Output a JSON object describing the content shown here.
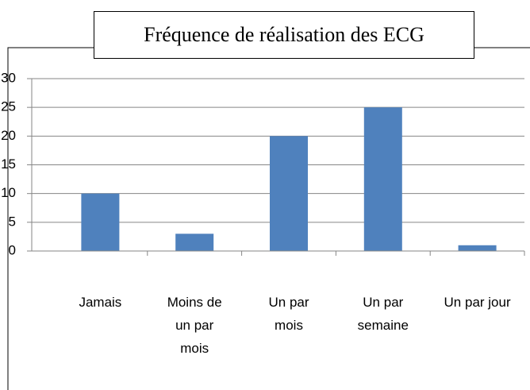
{
  "chart_data": {
    "type": "bar",
    "title": "Fréquence de réalisation des ECG",
    "categories": [
      "Jamais",
      "Moins de un par mois",
      "Un par mois",
      "Un par semaine",
      "Un par jour"
    ],
    "values": [
      10,
      3,
      20,
      25,
      1
    ],
    "color": "#4f81bd",
    "ylim": [
      0,
      30
    ],
    "yticks": [
      0,
      5,
      10,
      15,
      20,
      25,
      30
    ],
    "grid": true
  }
}
